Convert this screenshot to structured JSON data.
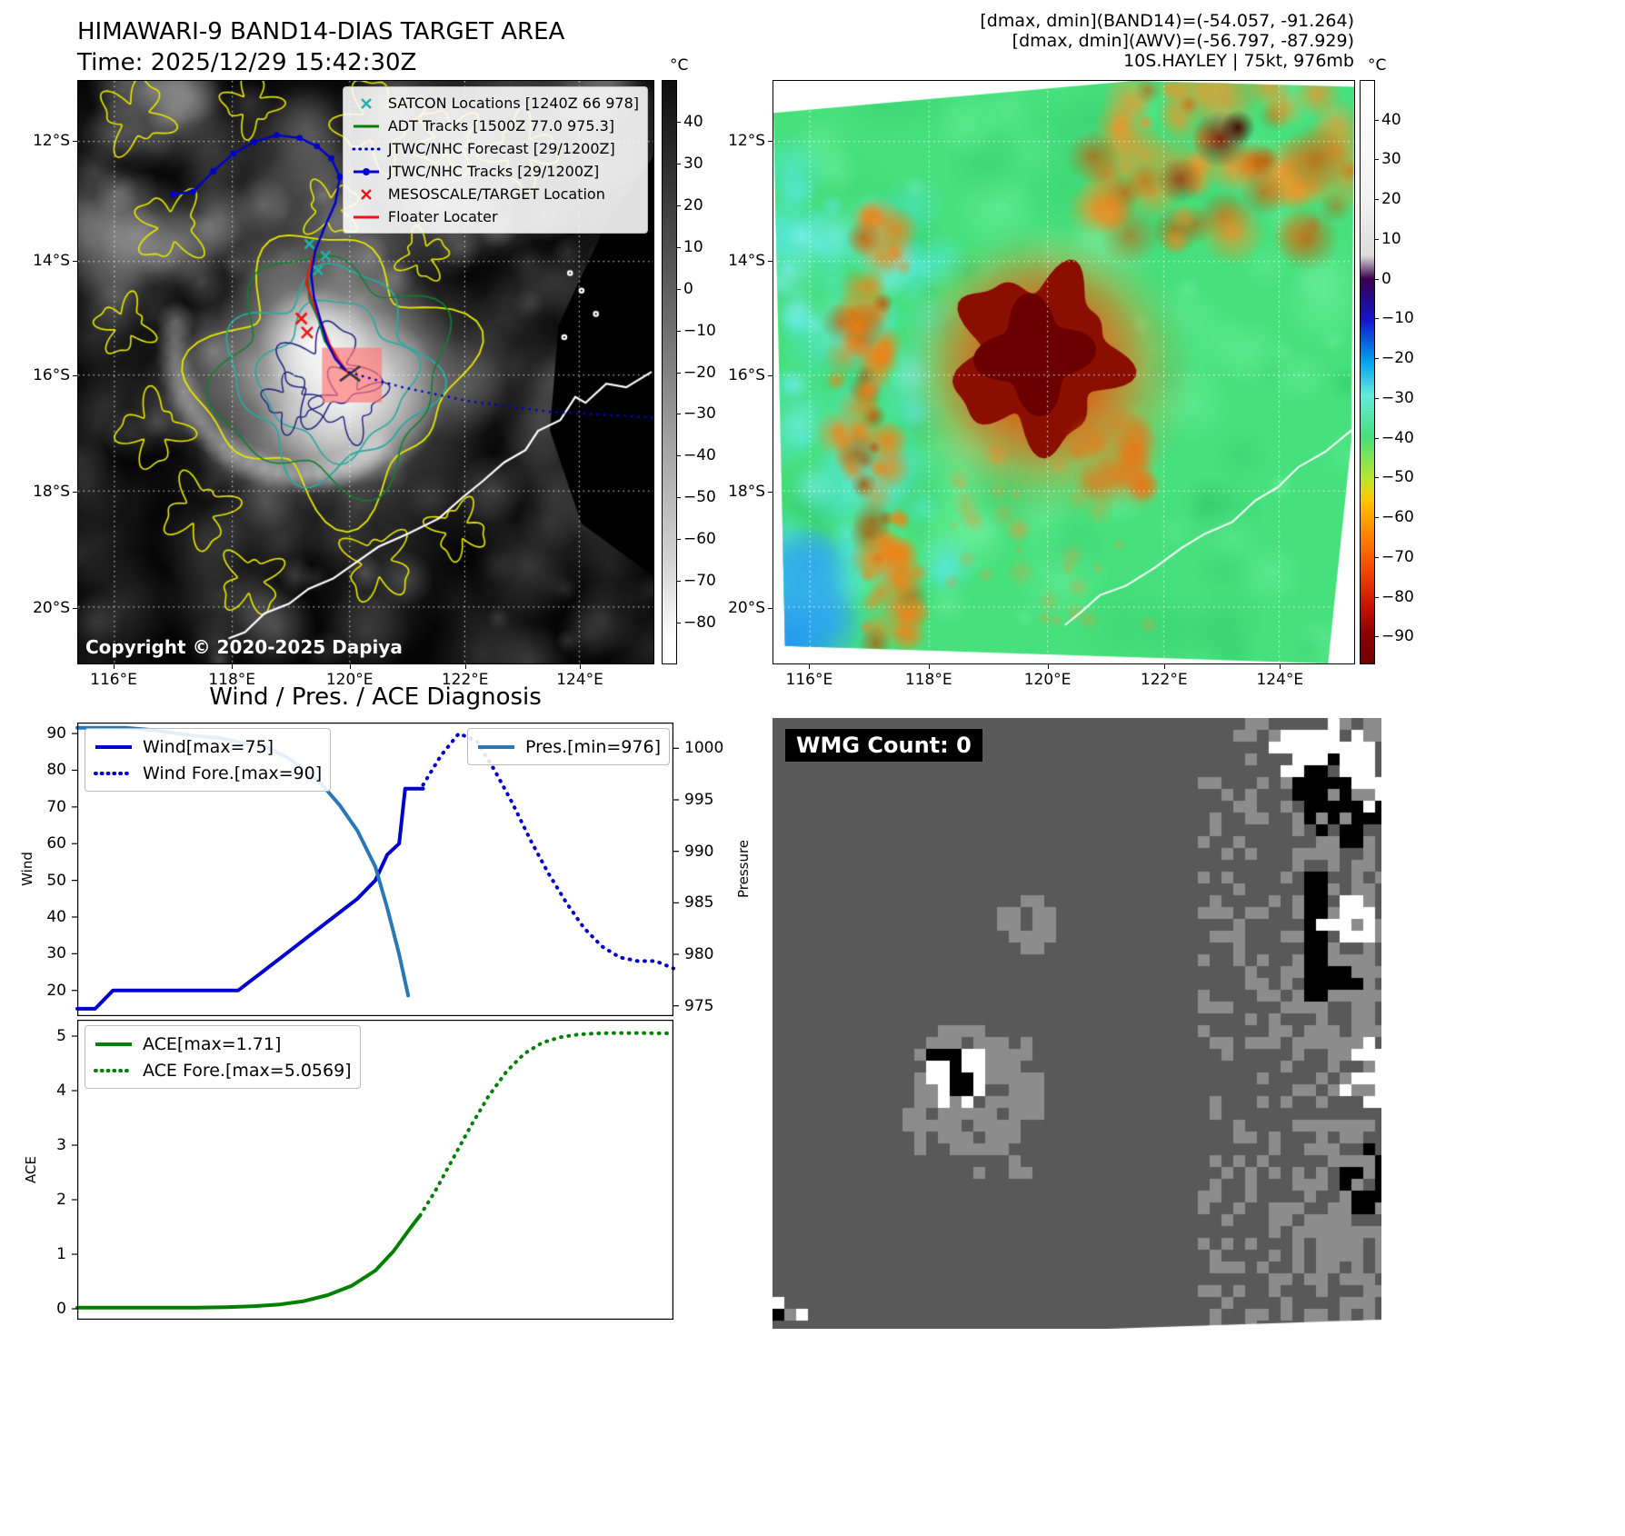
{
  "band14": {
    "title": "HIMAWARI-9 BAND14-DIAS TARGET AREA",
    "subtitle": "Time: 2025/12/29 15:42:30Z",
    "copyright": "Copyright © 2020-2025 Dapiya",
    "legend": [
      {
        "label": "SATCON Locations [1240Z 66 978]",
        "color": "#20b2aa",
        "style": "x"
      },
      {
        "label": "ADT Tracks [1500Z 77.0 975.3]",
        "color": "#008000",
        "style": "solid"
      },
      {
        "label": "JTWC/NHC Forecast [29/1200Z]",
        "color": "#0000cc",
        "style": "dotted"
      },
      {
        "label": "JTWC/NHC Tracks [29/1200Z]",
        "color": "#0000cc",
        "style": "solid-dot"
      },
      {
        "label": "MESOSCALE/TARGET Location",
        "color": "#e81818",
        "style": "x"
      },
      {
        "label": "Floater Locater",
        "color": "#e81818",
        "style": "solid"
      }
    ],
    "x_ticks": [
      "116°E",
      "118°E",
      "120°E",
      "122°E",
      "124°E"
    ],
    "y_ticks": [
      "12°S",
      "14°S",
      "16°S",
      "18°S",
      "20°S"
    ],
    "colorbar": {
      "unit": "°C",
      "ticks": [
        {
          "v": 40,
          "label": "40"
        },
        {
          "v": 30,
          "label": "30"
        },
        {
          "v": 20,
          "label": "20"
        },
        {
          "v": 10,
          "label": "10"
        },
        {
          "v": 0,
          "label": "0"
        },
        {
          "v": -10,
          "label": "−10"
        },
        {
          "v": -20,
          "label": "−20"
        },
        {
          "v": -30,
          "label": "−30"
        },
        {
          "v": -40,
          "label": "−40"
        },
        {
          "v": -50,
          "label": "−50"
        },
        {
          "v": -60,
          "label": "−60"
        },
        {
          "v": -70,
          "label": "−70"
        },
        {
          "v": -80,
          "label": "−80"
        }
      ]
    }
  },
  "awv": {
    "header_lines": [
      "[dmax, dmin](BAND14)=(-54.057, -91.264)",
      "[dmax, dmin](AWV)=(-56.797, -87.929)",
      "10S.HAYLEY | 75kt, 976mb"
    ],
    "x_ticks": [
      "116°E",
      "118°E",
      "120°E",
      "122°E",
      "124°E"
    ],
    "y_ticks": [
      "12°S",
      "14°S",
      "16°S",
      "18°S",
      "20°S"
    ],
    "colorbar": {
      "unit": "°C",
      "ticks": [
        {
          "v": 40,
          "label": "40"
        },
        {
          "v": 30,
          "label": "30"
        },
        {
          "v": 20,
          "label": "20"
        },
        {
          "v": 10,
          "label": "10"
        },
        {
          "v": 0,
          "label": "0"
        },
        {
          "v": -10,
          "label": "−10"
        },
        {
          "v": -20,
          "label": "−20"
        },
        {
          "v": -30,
          "label": "−30"
        },
        {
          "v": -40,
          "label": "−40"
        },
        {
          "v": -50,
          "label": "−50"
        },
        {
          "v": -60,
          "label": "−60"
        },
        {
          "v": -70,
          "label": "−70"
        },
        {
          "v": -80,
          "label": "−80"
        },
        {
          "v": -90,
          "label": "−90"
        }
      ]
    }
  },
  "wmg": {
    "label": "WMG Count: 0"
  },
  "chart_data": [
    {
      "type": "line",
      "title": "Wind / Pres. / ACE Diagnosis",
      "ylabel_left": "Wind",
      "ylabel_right": "Pressure",
      "y_left_ticks": [
        20,
        30,
        40,
        50,
        60,
        70,
        80,
        90
      ],
      "y_left_range": [
        13,
        93
      ],
      "y_right_ticks": [
        975,
        980,
        985,
        990,
        995,
        1000
      ],
      "y_right_range": [
        974,
        1002.5
      ],
      "x_range": [
        0,
        100
      ],
      "legend_position": {
        "left": "upper left",
        "right": "upper right"
      },
      "series": [
        {
          "name": "Wind[max=75]",
          "axis": "left",
          "style": "solid",
          "color": "#0000cc",
          "width": 4,
          "x": [
            0,
            3,
            6,
            27,
            31,
            35,
            39,
            43,
            47,
            50,
            52,
            54,
            55,
            58
          ],
          "y": [
            15,
            15,
            20,
            20,
            25,
            30,
            35,
            40,
            45,
            50,
            57,
            60,
            75,
            75
          ]
        },
        {
          "name": "Wind Fore.[max=90]",
          "axis": "left",
          "style": "dotted",
          "color": "#0000cc",
          "width": 4,
          "x": [
            58,
            61,
            64,
            67,
            70,
            73,
            76,
            79,
            82,
            85,
            88,
            91,
            94,
            97,
            100
          ],
          "y": [
            76,
            84,
            90,
            88,
            80,
            71,
            61,
            52,
            44,
            37,
            32,
            29,
            28,
            28,
            26
          ]
        },
        {
          "name": "Pres.[min=976]",
          "axis": "right",
          "style": "solid",
          "color": "#2878b8",
          "width": 4,
          "x": [
            0,
            4,
            8,
            12,
            16,
            20,
            24,
            28,
            32,
            35,
            38,
            41,
            44,
            47,
            50,
            52,
            54,
            55.5
          ],
          "y": [
            1002,
            1002,
            1002,
            1001.8,
            1001.5,
            1001.2,
            1001,
            1000.5,
            1000,
            999.2,
            998,
            996.5,
            994.5,
            992,
            988.5,
            984.5,
            980,
            976
          ]
        }
      ]
    },
    {
      "type": "line",
      "ylabel_left": "ACE",
      "y_left_ticks": [
        0,
        1,
        2,
        3,
        4,
        5
      ],
      "y_left_range": [
        -0.2,
        5.3
      ],
      "x_range": [
        0,
        100
      ],
      "legend_position": {
        "left": "upper left"
      },
      "series": [
        {
          "name": "ACE[max=1.71]",
          "axis": "left",
          "style": "solid",
          "color": "#008000",
          "width": 4,
          "x": [
            0,
            5,
            10,
            15,
            20,
            25,
            30,
            34,
            38,
            42,
            46,
            50,
            53,
            56,
            57.5
          ],
          "y": [
            0.02,
            0.02,
            0.02,
            0.02,
            0.02,
            0.03,
            0.05,
            0.08,
            0.14,
            0.25,
            0.42,
            0.7,
            1.05,
            1.5,
            1.71
          ]
        },
        {
          "name": "ACE Fore.[max=5.0569]",
          "axis": "left",
          "style": "dotted",
          "color": "#008000",
          "width": 4,
          "x": [
            57.5,
            60,
            63,
            66,
            69,
            72,
            75,
            78,
            81,
            84,
            87,
            90,
            94,
            100
          ],
          "y": [
            1.71,
            2.15,
            2.75,
            3.35,
            3.9,
            4.35,
            4.68,
            4.88,
            4.98,
            5.03,
            5.05,
            5.0569,
            5.0569,
            5.05
          ]
        }
      ]
    }
  ]
}
